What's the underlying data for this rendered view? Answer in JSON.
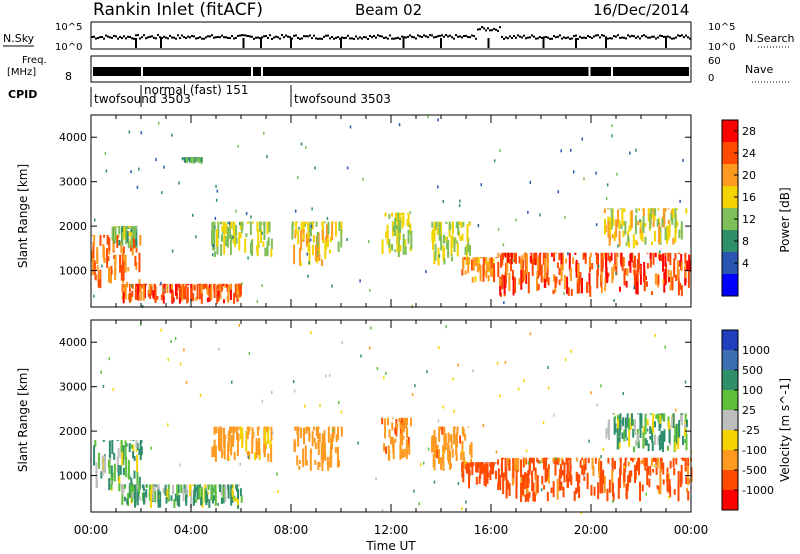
{
  "header": {
    "site": "Rankin Inlet (fitACF)",
    "beam": "Beam 02",
    "date": "16/Dec/2014"
  },
  "strip_labels": {
    "nsky": "N.Sky",
    "nsky_ticks": [
      "10^5",
      "10^0"
    ],
    "nsearch": "N.Search",
    "nsearch_ticks": [
      "10^5",
      "10^0"
    ],
    "freq": "Freq.",
    "freq_unit": "[MHz]",
    "freq_ticks": [
      "8"
    ],
    "nave": "Nave",
    "nave_ticks": [
      "60",
      "0"
    ],
    "cpid": "CPID"
  },
  "cpid_segments": [
    {
      "label": "twofsound 3503",
      "start_hour": 0.0
    },
    {
      "label": "normal (fast) 151",
      "start_hour": 2.0
    },
    {
      "label": "twofsound 3503",
      "start_hour": 8.0
    }
  ],
  "x_axis": {
    "label": "Time UT",
    "range_hours": [
      0,
      24
    ],
    "ticks": [
      "00:00",
      "04:00",
      "08:00",
      "12:00",
      "16:00",
      "20:00",
      "00:00"
    ]
  },
  "y_axis": {
    "label": "Slant Range [km]",
    "range_km": [
      180,
      4500
    ],
    "ticks": [
      "1000",
      "2000",
      "3000",
      "4000"
    ]
  },
  "power_colorbar": {
    "label": "Power [dB]",
    "ticks": [
      "28",
      "24",
      "20",
      "16",
      "12",
      "8",
      "4"
    ],
    "colors": [
      "#ff0000",
      "#ff4a00",
      "#ff9a20",
      "#f4d400",
      "#7fbf5a",
      "#2e8f6a",
      "#2a55b0",
      "#0000ff"
    ]
  },
  "velocity_colorbar": {
    "label": "Velocity [m s^-1]",
    "ticks": [
      "1000",
      "500",
      "100",
      "25",
      "-25",
      "-100",
      "-500",
      "-1000"
    ],
    "colors": [
      "#1f3fbf",
      "#3b6fb0",
      "#2e8f6a",
      "#5dbf3a",
      "#bebebe",
      "#f4d400",
      "#ff9a20",
      "#ff4a00",
      "#ff0000"
    ]
  },
  "chart_data": {
    "type": "heatmap",
    "x_unit": "hours UT",
    "y_unit": "km",
    "power_regions": [
      {
        "x": [
          0.0,
          2.0
        ],
        "y": [
          600,
          1800
        ],
        "value": 24
      },
      {
        "x": [
          0.8,
          1.8
        ],
        "y": [
          1500,
          2000
        ],
        "value": 14
      },
      {
        "x": [
          1.2,
          6.0
        ],
        "y": [
          250,
          700
        ],
        "value": 26
      },
      {
        "x": [
          3.6,
          4.4
        ],
        "y": [
          3400,
          3550
        ],
        "value": 12
      },
      {
        "x": [
          4.8,
          7.2
        ],
        "y": [
          1300,
          2100
        ],
        "value": 16
      },
      {
        "x": [
          8.0,
          10.0
        ],
        "y": [
          1100,
          2100
        ],
        "value": 18
      },
      {
        "x": [
          11.6,
          12.8
        ],
        "y": [
          1300,
          2300
        ],
        "value": 16
      },
      {
        "x": [
          13.6,
          15.2
        ],
        "y": [
          1100,
          2100
        ],
        "value": 16
      },
      {
        "x": [
          14.8,
          16.2
        ],
        "y": [
          700,
          1300
        ],
        "value": 22
      },
      {
        "x": [
          16.2,
          24.0
        ],
        "y": [
          400,
          1400
        ],
        "value": 26
      },
      {
        "x": [
          20.5,
          23.8
        ],
        "y": [
          1500,
          2400
        ],
        "value": 18
      }
    ],
    "velocity_regions": [
      {
        "x": [
          0.0,
          2.0
        ],
        "y": [
          600,
          1800
        ],
        "value": 100
      },
      {
        "x": [
          1.2,
          6.0
        ],
        "y": [
          250,
          800
        ],
        "value": 100
      },
      {
        "x": [
          4.8,
          7.2
        ],
        "y": [
          1300,
          2100
        ],
        "value": -200
      },
      {
        "x": [
          8.0,
          10.0
        ],
        "y": [
          1100,
          2100
        ],
        "value": -300
      },
      {
        "x": [
          11.6,
          12.8
        ],
        "y": [
          1300,
          2300
        ],
        "value": -400
      },
      {
        "x": [
          13.6,
          15.2
        ],
        "y": [
          1100,
          2100
        ],
        "value": -350
      },
      {
        "x": [
          14.8,
          16.2
        ],
        "y": [
          700,
          1300
        ],
        "value": -800
      },
      {
        "x": [
          16.2,
          24.0
        ],
        "y": [
          400,
          1400
        ],
        "value": -600
      },
      {
        "x": [
          20.5,
          23.8
        ],
        "y": [
          1500,
          2400
        ],
        "value": 80
      }
    ]
  }
}
